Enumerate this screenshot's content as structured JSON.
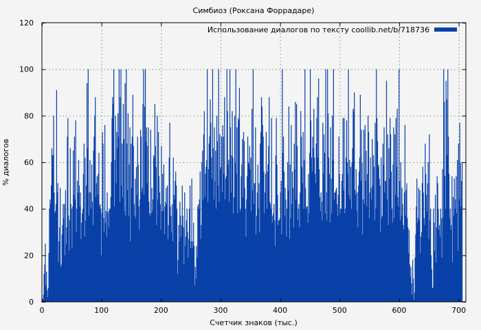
{
  "chart_data": {
    "type": "bar",
    "title": "Симбиоз (Роксана Форрадаре)",
    "xlabel": "Счетчик знаков (тыс.)",
    "ylabel": "% диалогов",
    "xlim": [
      0,
      712
    ],
    "ylim": [
      0,
      120
    ],
    "x_ticks": [
      0,
      100,
      200,
      300,
      400,
      500,
      600,
      700
    ],
    "y_ticks": [
      0,
      20,
      40,
      60,
      80,
      100,
      120
    ],
    "grid": true,
    "legend_position": "top-right",
    "series": [
      {
        "name": "Использование диалогов по тексту coollib.net/b/718736",
        "color": "#0841a8",
        "x_step": 1,
        "values": [
          0,
          1,
          3,
          12,
          16,
          25,
          7,
          13,
          5,
          2,
          6,
          21,
          40,
          44,
          42,
          50,
          66,
          63,
          63,
          80,
          47,
          38,
          39,
          42,
          91,
          47,
          51,
          17,
          26,
          32,
          49,
          15,
          16,
          29,
          33,
          42,
          36,
          42,
          20,
          48,
          25,
          32,
          71,
          79,
          37,
          22,
          35,
          66,
          42,
          40,
          23,
          41,
          65,
          46,
          71,
          44,
          78,
          30,
          40,
          52,
          47,
          61,
          50,
          41,
          47,
          27,
          34,
          38,
          40,
          55,
          68,
          28,
          62,
          35,
          50,
          94,
          66,
          100,
          37,
          47,
          61,
          47,
          40,
          59,
          43,
          33,
          65,
          71,
          80,
          88,
          45,
          51,
          54,
          46,
          55,
          64,
          41,
          42,
          40,
          20,
          38,
          73,
          68,
          36,
          30,
          76,
          34,
          39,
          28,
          47,
          38,
          39,
          32,
          40,
          40,
          45,
          60,
          79,
          88,
          85,
          100,
          41,
          61,
          80,
          51,
          73,
          66,
          81,
          71,
          100,
          43,
          88,
          100,
          50,
          68,
          45,
          85,
          70,
          39,
          94,
          37,
          100,
          68,
          48,
          81,
          37,
          59,
          75,
          26,
          68,
          49,
          71,
          89,
          67,
          42,
          37,
          53,
          36,
          58,
          46,
          71,
          59,
          41,
          31,
          44,
          74,
          71,
          47,
          49,
          85,
          100,
          46,
          84,
          100,
          69,
          75,
          51,
          67,
          75,
          43,
          38,
          37,
          74,
          38,
          49,
          39,
          44,
          63,
          62,
          85,
          67,
          58,
          33,
          80,
          44,
          73,
          54,
          47,
          42,
          31,
          67,
          39,
          55,
          39,
          59,
          29,
          41,
          43,
          49,
          42,
          50,
          27,
          33,
          62,
          77,
          41,
          37,
          30,
          42,
          26,
          62,
          46,
          44,
          52,
          56,
          50,
          40,
          12,
          18,
          33,
          26,
          43,
          37,
          28,
          33,
          50,
          37,
          32,
          16,
          47,
          24,
          28,
          35,
          40,
          30,
          19,
          27,
          40,
          50,
          23,
          26,
          53,
          23,
          26,
          34,
          24,
          7,
          15,
          10,
          24,
          19,
          41,
          42,
          40,
          44,
          56,
          27,
          33,
          60,
          65,
          44,
          72,
          82,
          45,
          55,
          58,
          61,
          100,
          43,
          57,
          68,
          71,
          87,
          77,
          62,
          53,
          100,
          66,
          44,
          75,
          52,
          65,
          40,
          80,
          69,
          50,
          100,
          43,
          72,
          57,
          58,
          71,
          47,
          76,
          71,
          55,
          88,
          44,
          53,
          54,
          100,
          82,
          59,
          61,
          43,
          100,
          75,
          47,
          63,
          82,
          62,
          38,
          45,
          80,
          60,
          100,
          55,
          75,
          38,
          79,
          78,
          92,
          39,
          40,
          54,
          59,
          70,
          45,
          73,
          69,
          49,
          40,
          28,
          44,
          54,
          71,
          60,
          59,
          67,
          57,
          62,
          39,
          83,
          48,
          100,
          42,
          51,
          51,
          75,
          29,
          37,
          47,
          59,
          40,
          51,
          30,
          68,
          73,
          88,
          84,
          76,
          71,
          56,
          38,
          47,
          55,
          73,
          40,
          56,
          59,
          67,
          88,
          43,
          42,
          40,
          79,
          34,
          37,
          38,
          42,
          35,
          24,
          63,
          79,
          59,
          46,
          33,
          35,
          35,
          36,
          47,
          52,
          29,
          100,
          64,
          71,
          56,
          37,
          49,
          44,
          28,
          40,
          60,
          48,
          84,
          27,
          59,
          36,
          76,
          42,
          56,
          49,
          32,
          68,
          57,
          86,
          44,
          85,
          67,
          35,
          40,
          42,
          32,
          47,
          82,
          71,
          58,
          51,
          73,
          40,
          61,
          100,
          49,
          40,
          41,
          41,
          34,
          55,
          38,
          64,
          100,
          78,
          62,
          56,
          71,
          66,
          83,
          62,
          55,
          51,
          68,
          79,
          88,
          62,
          96,
          57,
          45,
          39,
          47,
          43,
          35,
          77,
          55,
          72,
          64,
          38,
          100,
          47,
          35,
          100,
          81,
          62,
          55,
          34,
          75,
          53,
          38,
          80,
          61,
          100,
          44,
          47,
          47,
          48,
          49,
          42,
          37,
          46,
          71,
          55,
          38,
          40,
          40,
          52,
          55,
          79,
          48,
          79,
          38,
          40,
          62,
          78,
          60,
          55,
          100,
          46,
          61,
          44,
          58,
          40,
          60,
          66,
          83,
          82,
          90,
          48,
          46,
          57,
          39,
          47,
          32,
          50,
          56,
          62,
          89,
          52,
          74,
          60,
          29,
          44,
          74,
          42,
          76,
          52,
          65,
          41,
          55,
          80,
          73,
          36,
          47,
          62,
          49,
          44,
          70,
          50,
          63,
          58,
          35,
          77,
          40,
          100,
          79,
          69,
          58,
          59,
          53,
          50,
          30,
          62,
          36,
          37,
          68,
          59,
          75,
          47,
          52,
          52,
          95,
          44,
          72,
          33,
          66,
          53,
          79,
          72,
          56,
          40,
          34,
          59,
          75,
          36,
          72,
          46,
          79,
          58,
          83,
          45,
          41,
          100,
          52,
          35,
          60,
          37,
          49,
          42,
          33,
          31,
          47,
          76,
          37,
          48,
          51,
          36,
          32,
          21,
          31,
          16,
          11,
          15,
          8,
          3,
          18,
          10,
          1,
          4,
          19,
          29,
          41,
          53,
          34,
          36,
          49,
          35,
          48,
          21,
          28,
          30,
          51,
          58,
          47,
          36,
          33,
          68,
          55,
          46,
          39,
          51,
          60,
          27,
          72,
          35,
          40,
          20,
          14,
          6,
          6,
          40,
          34,
          22,
          46,
          17,
          32,
          54,
          51,
          40,
          31,
          33,
          28,
          40,
          36,
          19,
          57,
          36,
          100,
          86,
          54,
          40,
          95,
          87,
          63,
          100,
          71,
          55,
          36,
          40,
          31,
          33,
          54,
          17,
          45,
          37,
          53,
          40,
          44,
          54,
          38,
          61,
          22,
          68,
          44,
          77,
          60,
          41,
          52,
          60
        ]
      }
    ]
  }
}
